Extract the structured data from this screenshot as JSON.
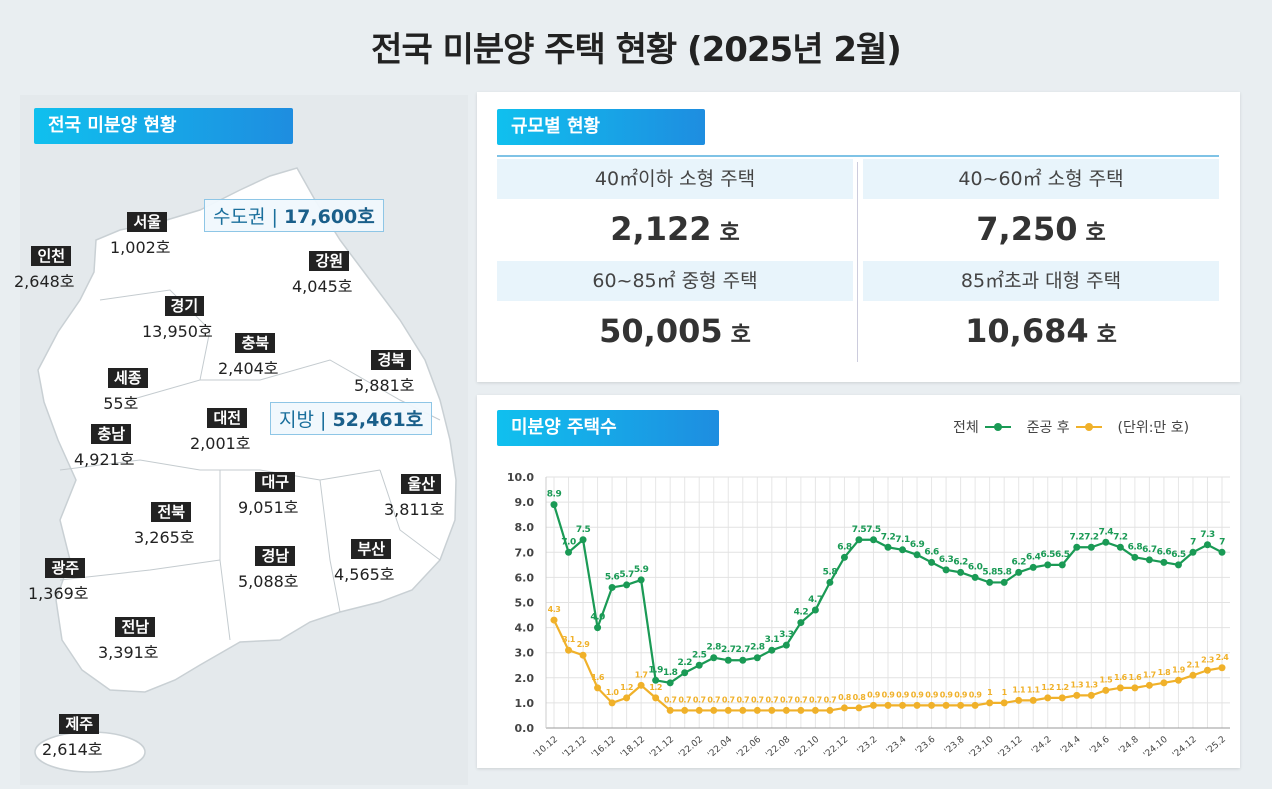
{
  "title": "전국 미분양 주택 현황  (2025년 2월)",
  "map_panel": {
    "badge": "전국 미분양 현황",
    "capital": {
      "label": "수도권",
      "value": "17,600호"
    },
    "local": {
      "label": "지방",
      "value": "52,461호"
    },
    "regions": [
      {
        "name": "서울",
        "value": "1,002호"
      },
      {
        "name": "인천",
        "value": "2,648호"
      },
      {
        "name": "강원",
        "value": "4,045호"
      },
      {
        "name": "경기",
        "value": "13,950호"
      },
      {
        "name": "충북",
        "value": "2,404호"
      },
      {
        "name": "경북",
        "value": "5,881호"
      },
      {
        "name": "세종",
        "value": "55호"
      },
      {
        "name": "대전",
        "value": "2,001호"
      },
      {
        "name": "충남",
        "value": "4,921호"
      },
      {
        "name": "대구",
        "value": "9,051호"
      },
      {
        "name": "울산",
        "value": "3,811호"
      },
      {
        "name": "전북",
        "value": "3,265호"
      },
      {
        "name": "경남",
        "value": "5,088호"
      },
      {
        "name": "부산",
        "value": "4,565호"
      },
      {
        "name": "광주",
        "value": "1,369호"
      },
      {
        "name": "전남",
        "value": "3,391호"
      },
      {
        "name": "제주",
        "value": "2,614호"
      }
    ]
  },
  "size_panel": {
    "badge": "규모별 현황",
    "unit": "호",
    "cells": [
      {
        "label": "40㎡이하 소형 주택",
        "value": "2,122"
      },
      {
        "label": "40~60㎡ 소형 주택",
        "value": "7,250"
      },
      {
        "label": "60~85㎡ 중형 주택",
        "value": "50,005"
      },
      {
        "label": "85㎡초과 대형 주택",
        "value": "10,684"
      }
    ]
  },
  "chart_panel": {
    "badge": "미분양 주택수",
    "unit_note": "(단위:만 호)"
  },
  "chart_data": {
    "type": "line",
    "ylim": [
      0,
      10
    ],
    "yticks": [
      "0.0",
      "1.0",
      "2.0",
      "3.0",
      "4.0",
      "5.0",
      "6.0",
      "7.0",
      "8.0",
      "9.0",
      "10.0"
    ],
    "grid": true,
    "legend_placement": "top-right",
    "x_tick_labels": [
      "'10.12",
      "",
      "'12.12",
      "",
      "'16.12",
      "",
      "'18.12",
      "",
      "'21.12",
      "",
      "'22.02",
      "",
      "'22.04",
      "",
      "'22.06",
      "",
      "'22.08",
      "",
      "'22.10",
      "",
      "'22.12",
      "",
      "'23.2",
      "",
      "'23.4",
      "",
      "'23.6",
      "",
      "'23.8",
      "",
      "'23.10",
      "",
      "'23.12",
      "",
      "'24.2",
      "",
      "'24.4",
      "",
      "'24.6",
      "",
      "'24.8",
      "",
      "'24.10",
      "",
      "'24.12",
      "",
      "'25.2"
    ],
    "series": [
      {
        "name": "전체",
        "color": "#1a9a55",
        "values": [
          8.9,
          7.0,
          7.5,
          4.0,
          5.6,
          5.7,
          5.9,
          1.9,
          1.8,
          2.2,
          2.5,
          2.8,
          2.7,
          2.7,
          2.8,
          3.1,
          3.3,
          4.2,
          4.7,
          5.8,
          6.8,
          7.5,
          7.5,
          7.2,
          7.1,
          6.9,
          6.6,
          6.3,
          6.2,
          6.0,
          5.8,
          5.8,
          6.2,
          6.4,
          6.5,
          6.5,
          7.2,
          7.2,
          7.4,
          7.2,
          6.8,
          6.7,
          6.6,
          6.5,
          7,
          7.3,
          7
        ],
        "labels": [
          "8.9",
          "7.0",
          "7.5",
          "4.0",
          "5.6",
          "5.7",
          "5.9",
          "1.9",
          "1.8",
          "2.2",
          "2.5",
          "2.8",
          "2.7",
          "2.7",
          "2.8",
          "3.1",
          "3.3",
          "4.2",
          "4.7",
          "5.8",
          "6.8",
          "7.5",
          "7.5",
          "7.2",
          "7.1",
          "6.9",
          "6.6",
          "6.3",
          "6.2",
          "6.0",
          "5.8",
          "5.8",
          "6.2",
          "6.4",
          "6.5",
          "6.5",
          "7.2",
          "7.2",
          "7.4",
          "7.2",
          "6.8",
          "6.7",
          "6.6",
          "6.5",
          "7",
          "7.3",
          "7"
        ]
      },
      {
        "name": "준공 후",
        "color": "#f0b12a",
        "values": [
          4.3,
          3.1,
          2.9,
          1.6,
          1.0,
          1.2,
          1.7,
          1.2,
          0.7,
          0.7,
          0.7,
          0.7,
          0.7,
          0.7,
          0.7,
          0.7,
          0.7,
          0.7,
          0.7,
          0.7,
          0.8,
          0.8,
          0.9,
          0.9,
          0.9,
          0.9,
          0.9,
          0.9,
          0.9,
          0.9,
          1,
          1,
          1.1,
          1.1,
          1.2,
          1.2,
          1.3,
          1.3,
          1.5,
          1.6,
          1.6,
          1.7,
          1.8,
          1.9,
          2.1,
          2.3,
          2.4
        ],
        "labels": [
          "4.3",
          "3.1",
          "2.9",
          "1.6",
          "1.0",
          "1.2",
          "1.7",
          "1.2",
          "0.7",
          "0.7",
          "0.7",
          "0.7",
          "0.7",
          "0.7",
          "0.7",
          "0.7",
          "0.7",
          "0.7",
          "0.7",
          "0.7",
          "0.8",
          "0.8",
          "0.9",
          "0.9",
          "0.9",
          "0.9",
          "0.9",
          "0.9",
          "0.9",
          "0.9",
          "1",
          "1",
          "1.1",
          "1.1",
          "1.2",
          "1.2",
          "1.3",
          "1.3",
          "1.5",
          "1.6",
          "1.6",
          "1.7",
          "1.8",
          "1.9",
          "2.1",
          "2.3",
          "2.4"
        ]
      }
    ]
  }
}
